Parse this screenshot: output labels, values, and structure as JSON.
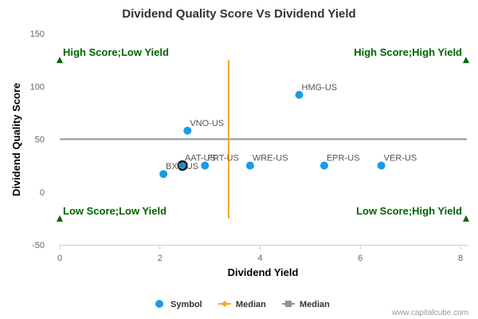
{
  "chart_data": {
    "type": "scatter",
    "title": "Dividend Quality Score Vs Dividend Yield",
    "xlabel": "Dividend Yield",
    "ylabel": "Dividend Quality Score",
    "xlim": [
      0,
      8
    ],
    "ylim": [
      -50,
      150
    ],
    "x_ticks": [
      "0",
      "2",
      "4",
      "6",
      "8"
    ],
    "y_ticks": [
      "-50",
      "0",
      "50",
      "100",
      "150"
    ],
    "points": [
      {
        "label": "HMG-US",
        "x": 4.78,
        "y": 92
      },
      {
        "label": "VNO-US",
        "x": 2.55,
        "y": 58
      },
      {
        "label": "AAT-US",
        "x": 2.45,
        "y": 25
      },
      {
        "label": "FRT-US",
        "x": 2.9,
        "y": 25
      },
      {
        "label": "WRE-US",
        "x": 3.8,
        "y": 25
      },
      {
        "label": "EPR-US",
        "x": 5.28,
        "y": 25
      },
      {
        "label": "VER-US",
        "x": 6.42,
        "y": 25
      },
      {
        "label": "BXP-US",
        "x": 2.07,
        "y": 17
      }
    ],
    "highlighted_point": "AAT-US",
    "median_x": 3.37,
    "median_y": 50,
    "quadrant_labels": {
      "top_left": "High Score;Low Yield",
      "top_right": "High Score;High Yield",
      "bottom_left": "Low Score;Low Yield",
      "bottom_right": "Low Score;High Yield"
    },
    "legend": [
      {
        "name": "Symbol",
        "color": "#1a9be6"
      },
      {
        "name": "Median",
        "color": "#f5a623"
      },
      {
        "name": "Median",
        "color": "#8a94a6"
      }
    ],
    "legend_position": "bottom",
    "colors": {
      "points": "#1a9be6",
      "median_x_line": "#f5a623",
      "median_y_line": "#8a94a6",
      "quadrant": "#006400",
      "axis": "#c0d0e0"
    }
  },
  "credit": "www.capitalcube.com"
}
